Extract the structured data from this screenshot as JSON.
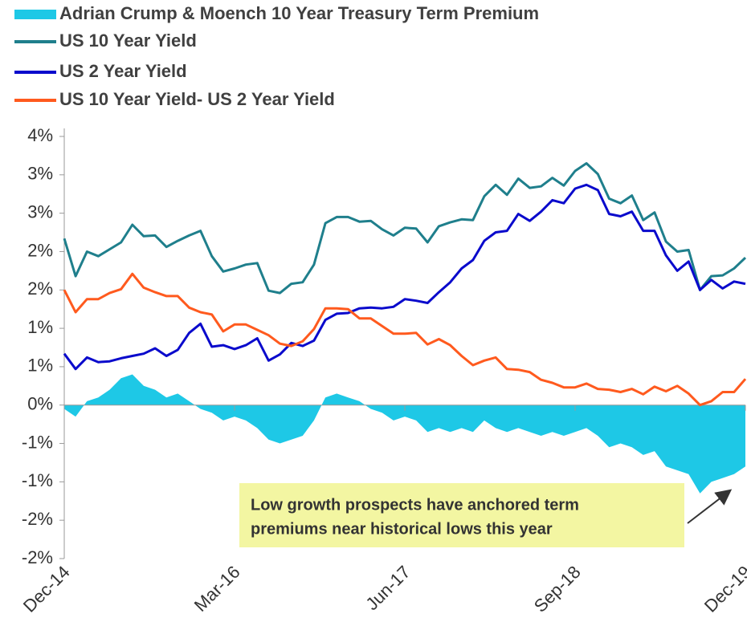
{
  "chart_data": {
    "type": "line",
    "categories": [
      "Dec-14",
      null,
      null,
      null,
      null,
      null,
      null,
      null,
      null,
      null,
      null,
      null,
      null,
      null,
      null,
      "Mar-16",
      null,
      null,
      null,
      null,
      null,
      null,
      null,
      null,
      null,
      null,
      null,
      null,
      null,
      null,
      "Jun-17",
      null,
      null,
      null,
      null,
      null,
      null,
      null,
      null,
      null,
      null,
      null,
      null,
      null,
      null,
      "Sep-18",
      null,
      null,
      null,
      null,
      null,
      null,
      null,
      null,
      null,
      null,
      null,
      null,
      null,
      null,
      "Dec-19"
    ],
    "series": [
      {
        "name": "Adrian Crump & Moench 10 Year Treasury Term Premium",
        "kind": "area",
        "color": "#1ec8e6",
        "values": [
          -0.05,
          -0.15,
          0.05,
          0.1,
          0.2,
          0.35,
          0.4,
          0.25,
          0.2,
          0.1,
          0.15,
          0.05,
          -0.05,
          -0.1,
          -0.2,
          -0.15,
          -0.2,
          -0.3,
          -0.45,
          -0.5,
          -0.45,
          -0.4,
          -0.2,
          0.1,
          0.15,
          0.1,
          0.05,
          -0.05,
          -0.1,
          -0.2,
          -0.15,
          -0.2,
          -0.35,
          -0.3,
          -0.35,
          -0.3,
          -0.35,
          -0.2,
          -0.3,
          -0.35,
          -0.3,
          -0.35,
          -0.4,
          -0.35,
          -0.4,
          -0.35,
          -0.3,
          -0.4,
          -0.55,
          -0.5,
          -0.55,
          -0.65,
          -0.6,
          -0.8,
          -0.85,
          -0.9,
          -1.15,
          -1.0,
          -0.95,
          -0.9,
          -0.8
        ]
      },
      {
        "name": "US 10 Year Yield",
        "kind": "line",
        "color": "#1f7f8c",
        "values": [
          2.17,
          1.68,
          2.0,
          1.94,
          2.03,
          2.12,
          2.35,
          2.2,
          2.21,
          2.06,
          2.14,
          2.21,
          2.27,
          1.94,
          1.74,
          1.78,
          1.83,
          1.85,
          1.49,
          1.46,
          1.58,
          1.6,
          1.83,
          2.37,
          2.45,
          2.45,
          2.39,
          2.4,
          2.29,
          2.21,
          2.31,
          2.3,
          2.12,
          2.33,
          2.38,
          2.42,
          2.41,
          2.72,
          2.87,
          2.74,
          2.95,
          2.83,
          2.85,
          2.96,
          2.86,
          3.05,
          3.15,
          3.01,
          2.69,
          2.63,
          2.73,
          2.41,
          2.51,
          2.13,
          2.0,
          2.02,
          1.5,
          1.68,
          1.69,
          1.78,
          1.92
        ]
      },
      {
        "name": "US 2 Year Yield",
        "kind": "line",
        "color": "#0a0acc",
        "values": [
          0.67,
          0.47,
          0.62,
          0.56,
          0.57,
          0.61,
          0.64,
          0.67,
          0.74,
          0.64,
          0.72,
          0.94,
          1.06,
          0.76,
          0.78,
          0.73,
          0.78,
          0.87,
          0.58,
          0.66,
          0.81,
          0.77,
          0.84,
          1.11,
          1.19,
          1.2,
          1.26,
          1.27,
          1.26,
          1.28,
          1.38,
          1.36,
          1.33,
          1.47,
          1.6,
          1.78,
          1.89,
          2.14,
          2.25,
          2.27,
          2.49,
          2.4,
          2.52,
          2.67,
          2.63,
          2.82,
          2.87,
          2.8,
          2.49,
          2.46,
          2.52,
          2.27,
          2.27,
          1.95,
          1.75,
          1.87,
          1.5,
          1.63,
          1.52,
          1.61,
          1.58
        ]
      },
      {
        "name": "US 10 Year Yield- US 2 Year Yield",
        "kind": "line",
        "color": "#ff5a1e",
        "values": [
          1.5,
          1.21,
          1.38,
          1.38,
          1.46,
          1.51,
          1.71,
          1.53,
          1.47,
          1.42,
          1.42,
          1.27,
          1.21,
          1.18,
          0.96,
          1.05,
          1.05,
          0.98,
          0.91,
          0.8,
          0.77,
          0.83,
          0.99,
          1.26,
          1.26,
          1.25,
          1.13,
          1.13,
          1.03,
          0.93,
          0.93,
          0.94,
          0.79,
          0.86,
          0.78,
          0.64,
          0.52,
          0.58,
          0.62,
          0.47,
          0.46,
          0.43,
          0.33,
          0.29,
          0.23,
          0.23,
          0.28,
          0.21,
          0.2,
          0.17,
          0.21,
          0.14,
          0.24,
          0.18,
          0.25,
          0.15,
          0.0,
          0.05,
          0.17,
          0.17,
          0.34
        ]
      }
    ],
    "ylim": [
      -2,
      3.5
    ],
    "yticks": [
      {
        "value": 3.5,
        "label": "4%"
      },
      {
        "value": 3.0,
        "label": "3%"
      },
      {
        "value": 2.5,
        "label": "3%"
      },
      {
        "value": 2.0,
        "label": "2%"
      },
      {
        "value": 1.5,
        "label": "2%"
      },
      {
        "value": 1.0,
        "label": "1%"
      },
      {
        "value": 0.5,
        "label": "1%"
      },
      {
        "value": 0,
        "label": "0%"
      },
      {
        "value": -0.5,
        "label": "-1%"
      },
      {
        "value": -1.0,
        "label": "-1%"
      },
      {
        "value": -1.5,
        "label": "-2%"
      },
      {
        "value": -2.0,
        "label": "-2%"
      }
    ],
    "annotation_lines": [
      "Low growth prospects have anchored term",
      "premiums near historical lows this year"
    ]
  }
}
